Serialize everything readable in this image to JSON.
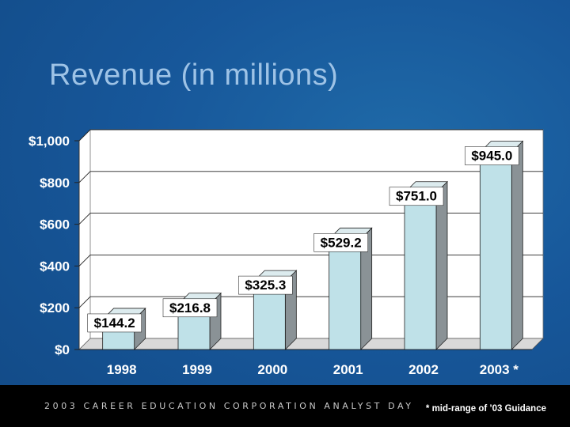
{
  "slide": {
    "title": "Revenue (in millions)",
    "footer_brand": "2003 CAREER EDUCATION CORPORATION ANALYST DAY",
    "footer_note": "* mid-range of ’03 Guidance"
  },
  "colors": {
    "background": "#17579a",
    "plot_area": "#ffffff",
    "bar_front": "#bfe1e8",
    "bar_side": "#8a9296",
    "bar_top": "#dcebee",
    "label_box": "#ffffff"
  },
  "chart_data": {
    "type": "bar",
    "categories": [
      "1998",
      "1999",
      "2000",
      "2001",
      "2002",
      "2003 *"
    ],
    "values": [
      144.2,
      216.8,
      325.3,
      529.2,
      751.0,
      945.0
    ],
    "data_labels": [
      "$144.2",
      "$216.8",
      "$325.3",
      "$529.2",
      "$751.0",
      "$945.0"
    ],
    "title": "Revenue (in millions)",
    "xlabel": "",
    "ylabel": "",
    "ylim": [
      0,
      1000
    ],
    "yticks": [
      0,
      200,
      400,
      600,
      800,
      1000
    ],
    "ytick_labels": [
      "$0",
      "$200",
      "$400",
      "$600",
      "$800",
      "$1,000"
    ],
    "grid": true,
    "legend": "none",
    "style": "3d-columns"
  }
}
